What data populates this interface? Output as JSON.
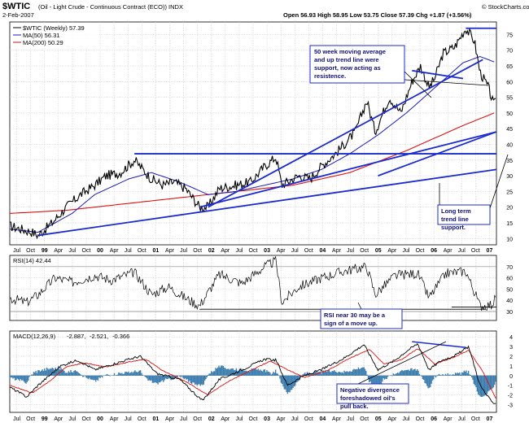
{
  "header": {
    "symbol": "$WTIC",
    "description": "(Oil - Light Crude - Continuous Contract (ECO)) INDX",
    "date": "2-Feb-2007",
    "ohlc": "Open 56.93  High 58.95  Low 53.75  Close 57.39  Chg +1.87 (+3.56%)",
    "chg_arrow": "▲",
    "watermark": "© StockCharts.com"
  },
  "legend": {
    "price": "$WTIC (Weekly) 57.39",
    "ma50": "MA(50) 56.31",
    "ma200": "MA(200) 50.29",
    "rsi": "RSI(14) 42.44",
    "macd_label": "MACD(12,26,9)",
    "macd_v1": "-2.887,",
    "macd_v2": "-2.521,",
    "macd_v3": "-0.366"
  },
  "annotations": {
    "ma_note": "50 week moving average and up trend line were support, now acting as resistence.",
    "trend_note": "Long term trend line support.",
    "rsi_note": "RSI near 30 may be a sign of a move up.",
    "macd_note": "Negative divergence foreshadowed oil's pull back."
  },
  "colors": {
    "price": "#000000",
    "ma50": "#1d1db8",
    "ma200": "#dd1111",
    "trendline": "#1c2bd0",
    "histogram": "#3f7fb0",
    "signal": "#dd1111",
    "grid": "#c8c8c8",
    "note_bg": "#ffffff",
    "note_text": "#101070"
  },
  "chart_data": {
    "type": "line",
    "x_ticks": [
      "Jul",
      "Oct",
      "99",
      "Apr",
      "Jul",
      "Oct",
      "00",
      "Apr",
      "Jul",
      "Oct",
      "01",
      "Apr",
      "Jul",
      "Oct",
      "02",
      "Apr",
      "Jul",
      "Oct",
      "03",
      "Apr",
      "Jul",
      "Oct",
      "04",
      "Apr",
      "Jul",
      "Oct",
      "05",
      "Apr",
      "Jul",
      "Oct",
      "06",
      "Apr",
      "Jul",
      "Oct",
      "07"
    ],
    "price_panel": {
      "y_ticks": [
        10,
        15,
        20,
        25,
        30,
        35,
        40,
        45,
        50,
        55,
        60,
        65,
        70,
        75
      ],
      "ylim": [
        8,
        79
      ],
      "price_anchors": [
        [
          1998.5,
          14
        ],
        [
          1998.9,
          12
        ],
        [
          1999.0,
          11
        ],
        [
          1999.25,
          15
        ],
        [
          1999.5,
          20
        ],
        [
          1999.75,
          24
        ],
        [
          2000.0,
          27
        ],
        [
          2000.2,
          30
        ],
        [
          2000.45,
          31
        ],
        [
          2000.7,
          35
        ],
        [
          2000.8,
          33
        ],
        [
          2001.0,
          29
        ],
        [
          2001.2,
          27
        ],
        [
          2001.4,
          28
        ],
        [
          2001.6,
          26
        ],
        [
          2001.85,
          20
        ],
        [
          2002.0,
          20
        ],
        [
          2002.2,
          26
        ],
        [
          2002.5,
          27
        ],
        [
          2002.75,
          28
        ],
        [
          2003.0,
          33
        ],
        [
          2003.2,
          36
        ],
        [
          2003.3,
          27
        ],
        [
          2003.6,
          30
        ],
        [
          2003.8,
          29
        ],
        [
          2004.0,
          33
        ],
        [
          2004.3,
          38
        ],
        [
          2004.6,
          44
        ],
        [
          2004.8,
          54
        ],
        [
          2004.95,
          44
        ],
        [
          2005.2,
          55
        ],
        [
          2005.4,
          50
        ],
        [
          2005.6,
          60
        ],
        [
          2005.75,
          65
        ],
        [
          2005.9,
          58
        ],
        [
          2006.0,
          61
        ],
        [
          2006.15,
          69
        ],
        [
          2006.35,
          71
        ],
        [
          2006.55,
          77
        ],
        [
          2006.7,
          73
        ],
        [
          2006.8,
          63
        ],
        [
          2006.95,
          58
        ],
        [
          2007.05,
          52
        ],
        [
          2007.09,
          57.39
        ]
      ],
      "ma50_anchors": [
        [
          1998.5,
          13
        ],
        [
          1999.0,
          12
        ],
        [
          1999.6,
          18
        ],
        [
          2000.0,
          24
        ],
        [
          2000.6,
          29
        ],
        [
          2001.0,
          31
        ],
        [
          2001.5,
          28
        ],
        [
          2002.0,
          24
        ],
        [
          2002.5,
          25
        ],
        [
          2003.0,
          27
        ],
        [
          2003.5,
          29
        ],
        [
          2004.0,
          32
        ],
        [
          2004.5,
          37
        ],
        [
          2005.0,
          43
        ],
        [
          2005.5,
          50
        ],
        [
          2006.0,
          58
        ],
        [
          2006.5,
          66
        ],
        [
          2006.8,
          68
        ],
        [
          2007.09,
          66
        ]
      ],
      "ma200_anchors": [
        [
          1998.5,
          18
        ],
        [
          1999.5,
          19
        ],
        [
          2000.5,
          21
        ],
        [
          2001.5,
          23
        ],
        [
          2002.5,
          25
        ],
        [
          2003.5,
          27
        ],
        [
          2004.5,
          31
        ],
        [
          2005.5,
          38
        ],
        [
          2006.5,
          46
        ],
        [
          2007.09,
          50.29
        ]
      ],
      "trendlines": [
        [
          [
            1999.0,
            11
          ],
          [
            2007.09,
            32
          ]
        ],
        [
          [
            2001.85,
            20
          ],
          [
            2007.09,
            44
          ]
        ],
        [
          [
            2002.0,
            20
          ],
          [
            2006.85,
            67
          ]
        ],
        [
          [
            2005.0,
            30
          ],
          [
            2007.09,
            44
          ]
        ],
        [
          [
            2000.7,
            37
          ],
          [
            2007.09,
            37
          ]
        ],
        [
          [
            2006.55,
            77
          ],
          [
            2007.09,
            77
          ]
        ],
        [
          [
            2005.6,
            63.5
          ],
          [
            2006.5,
            61
          ]
        ]
      ]
    },
    "rsi_panel": {
      "y_ticks": [
        30,
        40,
        50,
        60,
        70
      ],
      "ylim": [
        22,
        80
      ],
      "rsi_anchors": [
        [
          1998.5,
          42
        ],
        [
          1998.8,
          38
        ],
        [
          1999.0,
          45
        ],
        [
          1999.3,
          60
        ],
        [
          1999.6,
          56
        ],
        [
          2000.0,
          62
        ],
        [
          2000.3,
          58
        ],
        [
          2000.7,
          65
        ],
        [
          2001.0,
          45
        ],
        [
          2001.3,
          52
        ],
        [
          2001.6,
          42
        ],
        [
          2001.85,
          35
        ],
        [
          2002.2,
          63
        ],
        [
          2002.6,
          55
        ],
        [
          2003.0,
          70
        ],
        [
          2003.2,
          75
        ],
        [
          2003.3,
          38
        ],
        [
          2003.6,
          52
        ],
        [
          2004.0,
          60
        ],
        [
          2004.4,
          66
        ],
        [
          2004.8,
          70
        ],
        [
          2004.95,
          45
        ],
        [
          2005.3,
          62
        ],
        [
          2005.7,
          64
        ],
        [
          2005.9,
          42
        ],
        [
          2006.2,
          64
        ],
        [
          2006.55,
          66
        ],
        [
          2006.8,
          35
        ],
        [
          2007.0,
          36
        ],
        [
          2007.09,
          42.44
        ]
      ],
      "guides": [
        [
          [
            2001.85,
            32
          ],
          [
            2006.9,
            32
          ]
        ],
        [
          [
            2006.3,
            34
          ],
          [
            2007.09,
            34
          ]
        ]
      ]
    },
    "macd_panel": {
      "y_ticks": [
        -3,
        -2,
        -1,
        0,
        1,
        2,
        3,
        4
      ],
      "ylim": [
        -3.8,
        4.6
      ],
      "macd_anchors": [
        [
          1998.5,
          -1.2
        ],
        [
          1998.8,
          -2.2
        ],
        [
          1999.0,
          -1.0
        ],
        [
          1999.4,
          1.0
        ],
        [
          1999.7,
          1.6
        ],
        [
          2000.0,
          0.6
        ],
        [
          2000.5,
          1.5
        ],
        [
          2000.8,
          2.0
        ],
        [
          2001.1,
          0.2
        ],
        [
          2001.5,
          -0.4
        ],
        [
          2001.9,
          -2.6
        ],
        [
          2002.2,
          -0.4
        ],
        [
          2002.6,
          0.6
        ],
        [
          2003.0,
          1.7
        ],
        [
          2003.2,
          1.6
        ],
        [
          2003.4,
          -1.0
        ],
        [
          2003.7,
          0.0
        ],
        [
          2004.0,
          0.6
        ],
        [
          2004.4,
          1.8
        ],
        [
          2004.75,
          3.2
        ],
        [
          2005.0,
          0.6
        ],
        [
          2005.3,
          1.6
        ],
        [
          2005.5,
          2.5
        ],
        [
          2005.7,
          3.3
        ],
        [
          2005.9,
          0.6
        ],
        [
          2006.1,
          1.5
        ],
        [
          2006.4,
          2.2
        ],
        [
          2006.6,
          3.0
        ],
        [
          2006.8,
          -1.0
        ],
        [
          2007.0,
          -2.7
        ],
        [
          2007.09,
          -2.887
        ]
      ],
      "signal_anchors": [
        [
          1998.5,
          -1.0
        ],
        [
          1998.9,
          -1.8
        ],
        [
          1999.2,
          -0.6
        ],
        [
          1999.5,
          0.9
        ],
        [
          1999.8,
          1.3
        ],
        [
          2000.2,
          0.9
        ],
        [
          2000.6,
          1.4
        ],
        [
          2000.9,
          1.7
        ],
        [
          2001.2,
          0.5
        ],
        [
          2001.6,
          -0.6
        ],
        [
          2002.0,
          -2.0
        ],
        [
          2002.3,
          -0.8
        ],
        [
          2002.7,
          0.4
        ],
        [
          2003.1,
          1.5
        ],
        [
          2003.4,
          0.6
        ],
        [
          2003.7,
          -0.2
        ],
        [
          2004.1,
          0.5
        ],
        [
          2004.5,
          1.8
        ],
        [
          2004.85,
          2.7
        ],
        [
          2005.1,
          1.2
        ],
        [
          2005.4,
          1.6
        ],
        [
          2005.7,
          2.8
        ],
        [
          2006.0,
          1.2
        ],
        [
          2006.3,
          1.8
        ],
        [
          2006.6,
          2.6
        ],
        [
          2006.85,
          0.4
        ],
        [
          2007.09,
          -2.521
        ]
      ],
      "guides": [
        [
          [
            2005.6,
            3.5
          ],
          [
            2006.55,
            2.9
          ]
        ]
      ]
    }
  }
}
